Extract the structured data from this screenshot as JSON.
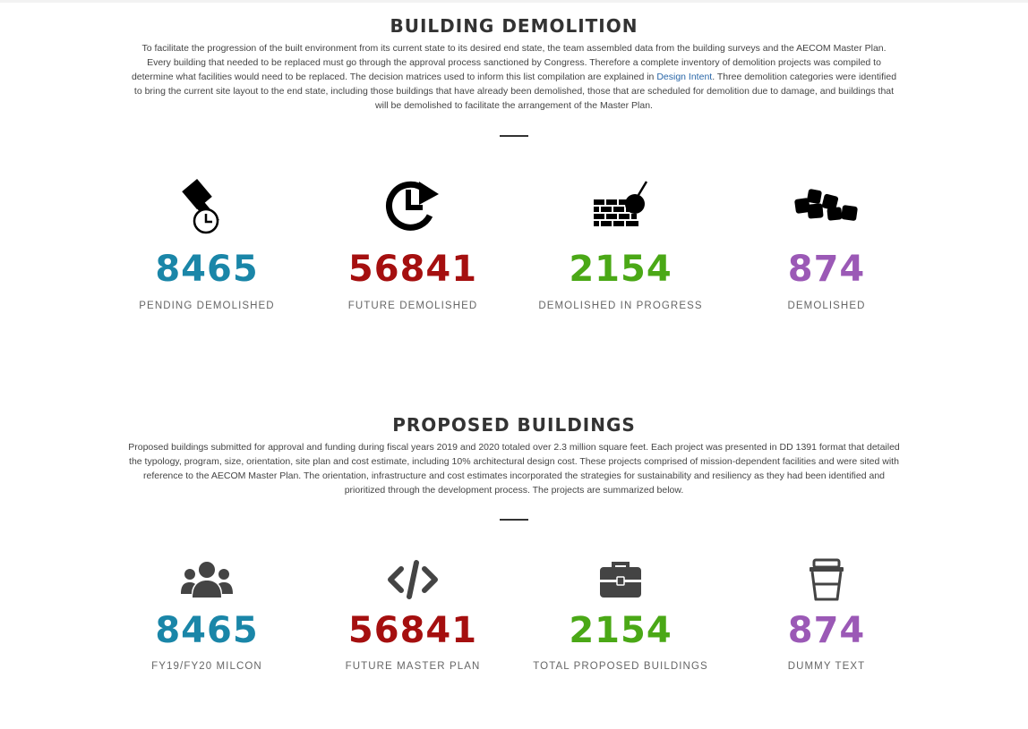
{
  "colors": {
    "blue": "#1a86a8",
    "red": "#a50f0f",
    "green": "#4aa816",
    "purple": "#9b59b6"
  },
  "demolition": {
    "title": "BUILDING DEMOLITION",
    "desc_before_link": "To facilitate the progression of the built environment from its current state to its desired end state, the team assembled data from the building surveys and the AECOM Master Plan. Every building that needed to be replaced must go through the approval process sanctioned by Congress. Therefore a complete inventory of demolition projects was compiled to determine what facilities would need to be replaced. The decision matrices used to inform this list compilation are explained in",
    "link_text": "Design Intent",
    "desc_after_link": ". Three demolition categories were identified to bring the current site layout to the end state, including those buildings that have already been demolished, those that are scheduled for demolition due to damage, and buildings that will be demolished to facilitate the arrangement of the Master Plan.",
    "stats": [
      {
        "icon": "hammer-clock-icon",
        "value": "8465",
        "label": "PENDING DEMOLISHED"
      },
      {
        "icon": "clock-refresh-icon",
        "value": "56841",
        "label": "FUTURE DEMOLISHED"
      },
      {
        "icon": "wrecking-ball-wall-icon",
        "value": "2154",
        "label": "DEMOLISHED IN PROGRESS"
      },
      {
        "icon": "rubble-icon",
        "value": "874",
        "label": "DEMOLISHED"
      }
    ]
  },
  "proposed": {
    "title": "PROPOSED BUILDINGS",
    "desc": "Proposed buildings submitted for approval and funding during fiscal years 2019 and 2020 totaled over 2.3 million square feet. Each project was presented in DD 1391 format that detailed the typology, program, size, orientation, site plan and cost estimate, including 10% architectural design cost. These projects comprised of mission-dependent facilities and were sited with reference to the AECOM Master Plan. The orientation, infrastructure and cost estimates incorporated the strategies for sustainability and resiliency as they had been identified and prioritized through the development process. The projects are summarized below.",
    "stats": [
      {
        "icon": "users-icon",
        "value": "8465",
        "label": "FY19/FY20 MILCON"
      },
      {
        "icon": "code-icon",
        "value": "56841",
        "label": "FUTURE MASTER PLAN"
      },
      {
        "icon": "briefcase-icon",
        "value": "2154",
        "label": "TOTAL PROPOSED BUILDINGS"
      },
      {
        "icon": "coffee-cup-icon",
        "value": "874",
        "label": "DUMMY TEXT"
      }
    ]
  }
}
